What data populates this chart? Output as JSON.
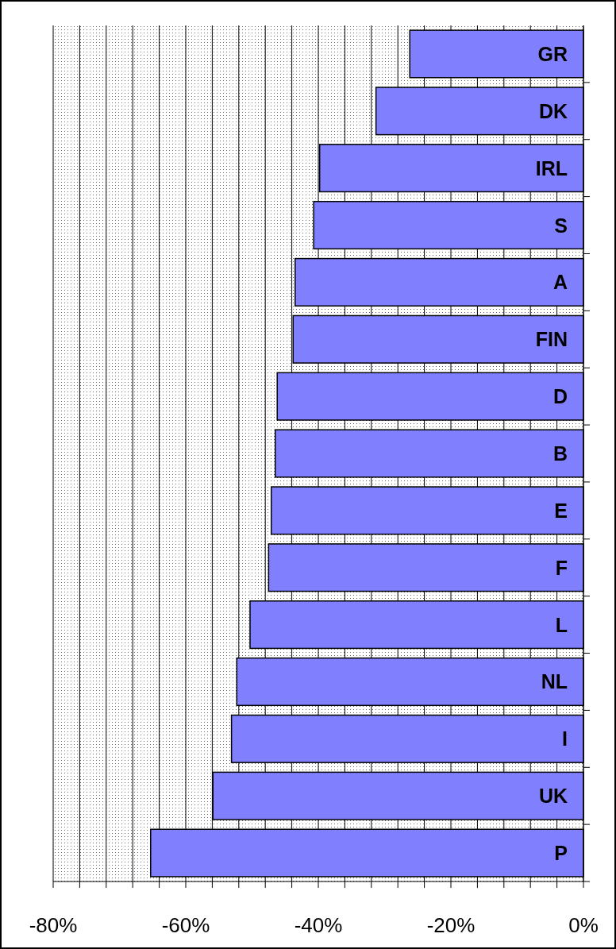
{
  "chart_data": {
    "type": "bar",
    "orientation": "horizontal",
    "categories": [
      "GR",
      "DK",
      "IRL",
      "S",
      "A",
      "FIN",
      "D",
      "B",
      "E",
      "F",
      "L",
      "NL",
      "I",
      "UK",
      "P"
    ],
    "values": [
      -26.2,
      -31.3,
      -39.8,
      -40.7,
      -43.5,
      -43.8,
      -46.2,
      -46.5,
      -47.1,
      -47.5,
      -50.3,
      -52.3,
      -53.1,
      -55.9,
      -65.3
    ],
    "color": "#8080ff",
    "xlim": [
      -80,
      0
    ],
    "xticks": [
      {
        "value": -80,
        "label": "-80%"
      },
      {
        "value": -76,
        "label": null
      },
      {
        "value": -72,
        "label": null
      },
      {
        "value": -68,
        "label": null
      },
      {
        "value": -64,
        "label": null
      },
      {
        "value": -60,
        "label": "-60%"
      },
      {
        "value": -56,
        "label": null
      },
      {
        "value": -52,
        "label": null
      },
      {
        "value": -48,
        "label": null
      },
      {
        "value": -44,
        "label": null
      },
      {
        "value": -40,
        "label": "-40%"
      },
      {
        "value": -36,
        "label": null
      },
      {
        "value": -32,
        "label": null
      },
      {
        "value": -28,
        "label": null
      },
      {
        "value": -24,
        "label": null
      },
      {
        "value": -20,
        "label": "-20%"
      },
      {
        "value": -16,
        "label": null
      },
      {
        "value": -12,
        "label": null
      },
      {
        "value": -8,
        "label": null
      },
      {
        "value": -4,
        "label": null
      },
      {
        "value": 0,
        "label": "0%"
      }
    ],
    "grid": "x"
  }
}
